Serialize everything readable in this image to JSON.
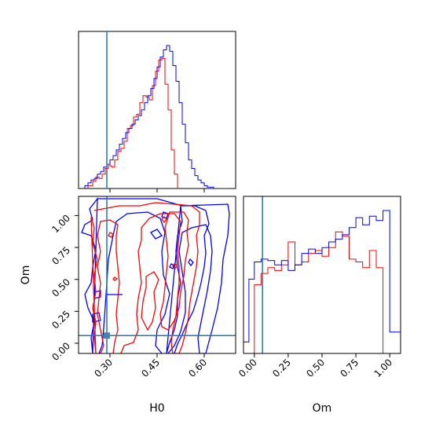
{
  "chart_data": [
    {
      "type": "histogram",
      "panel": "H0 marginal",
      "x_range": [
        0.2,
        0.7
      ],
      "truth": 0.29,
      "series": [
        {
          "color": "#ff0000",
          "edges": [
            0.23,
            0.245,
            0.255,
            0.265,
            0.275,
            0.285,
            0.295,
            0.305,
            0.315,
            0.325,
            0.335,
            0.345,
            0.355,
            0.365,
            0.375,
            0.385,
            0.395,
            0.405,
            0.415,
            0.425,
            0.435,
            0.445,
            0.455,
            0.465,
            0.475,
            0.485,
            0.495,
            0.505,
            0.515
          ],
          "counts": [
            0.02,
            0.05,
            0.08,
            0.07,
            0.1,
            0.14,
            0.16,
            0.15,
            0.2,
            0.26,
            0.28,
            0.33,
            0.42,
            0.44,
            0.5,
            0.52,
            0.6,
            0.65,
            0.64,
            0.62,
            0.72,
            0.82,
            0.9,
            0.91,
            0.73,
            0.55,
            0.27,
            0.1
          ]
        },
        {
          "color": "#0000ff",
          "edges": [
            0.22,
            0.23,
            0.24,
            0.25,
            0.26,
            0.27,
            0.28,
            0.29,
            0.3,
            0.31,
            0.32,
            0.33,
            0.34,
            0.35,
            0.36,
            0.37,
            0.38,
            0.39,
            0.4,
            0.41,
            0.42,
            0.43,
            0.44,
            0.45,
            0.46,
            0.47,
            0.48,
            0.49,
            0.5,
            0.51,
            0.52,
            0.53,
            0.54,
            0.55,
            0.56,
            0.57,
            0.58,
            0.59,
            0.6,
            0.61,
            0.62,
            0.63,
            0.64,
            0.65,
            0.66,
            0.67,
            0.68
          ],
          "counts": [
            0.02,
            0.04,
            0.06,
            0.07,
            0.1,
            0.12,
            0.15,
            0.17,
            0.2,
            0.23,
            0.27,
            0.31,
            0.35,
            0.39,
            0.42,
            0.45,
            0.48,
            0.51,
            0.55,
            0.6,
            0.65,
            0.7,
            0.77,
            0.85,
            0.92,
            0.97,
            1.0,
            0.96,
            0.86,
            0.75,
            0.6,
            0.45,
            0.32,
            0.2,
            0.14,
            0.09,
            0.06,
            0.04,
            0.02,
            0.01,
            0.01,
            0.0,
            0.0,
            0.0,
            0.0,
            0.0
          ]
        }
      ]
    },
    {
      "type": "contour",
      "panel": "H0 vs Om",
      "xlabel": "H0",
      "ylabel": "Om",
      "x_range": [
        0.2,
        0.7
      ],
      "y_range": [
        -0.08,
        1.15
      ],
      "x_ticks": [
        "0.30",
        "0.45",
        "0.60"
      ],
      "y_ticks": [
        "0.00",
        "0.25",
        "0.50",
        "0.75",
        "1.00"
      ],
      "truth": {
        "x": 0.29,
        "y": 0.06
      }
    },
    {
      "type": "histogram",
      "panel": "Om marginal",
      "xlabel": "Om",
      "x_range": [
        -0.08,
        1.08
      ],
      "x_ticks": [
        "0.00",
        "0.25",
        "0.50",
        "0.75",
        "1.00"
      ],
      "truth": 0.06,
      "series": [
        {
          "color": "#ff0000",
          "edges": [
            0.0,
            0.05,
            0.1,
            0.15,
            0.2,
            0.25,
            0.3,
            0.35,
            0.4,
            0.45,
            0.5,
            0.55,
            0.6,
            0.65,
            0.7,
            0.75,
            0.8,
            0.85,
            0.9,
            0.95,
            1.0
          ],
          "counts": [
            0.48,
            0.56,
            0.6,
            0.58,
            0.62,
            0.78,
            0.62,
            0.64,
            0.7,
            0.72,
            0.68,
            0.74,
            0.85,
            0.82,
            0.66,
            0.64,
            0.6,
            0.72,
            0.6,
            0.0
          ]
        },
        {
          "color": "#0000ff",
          "edges": [
            -0.08,
            -0.04,
            0.0,
            0.05,
            0.1,
            0.15,
            0.2,
            0.25,
            0.3,
            0.35,
            0.4,
            0.45,
            0.5,
            0.55,
            0.6,
            0.65,
            0.7,
            0.75,
            0.8,
            0.85,
            0.9,
            0.95,
            1.0,
            1.04,
            1.08
          ],
          "counts": [
            0.08,
            0.52,
            0.64,
            0.66,
            0.65,
            0.62,
            0.65,
            0.58,
            0.62,
            0.7,
            0.73,
            0.7,
            0.74,
            0.78,
            0.8,
            0.83,
            0.88,
            0.95,
            0.9,
            0.96,
            0.93,
            1.0,
            0.15,
            0.15
          ]
        }
      ]
    }
  ]
}
